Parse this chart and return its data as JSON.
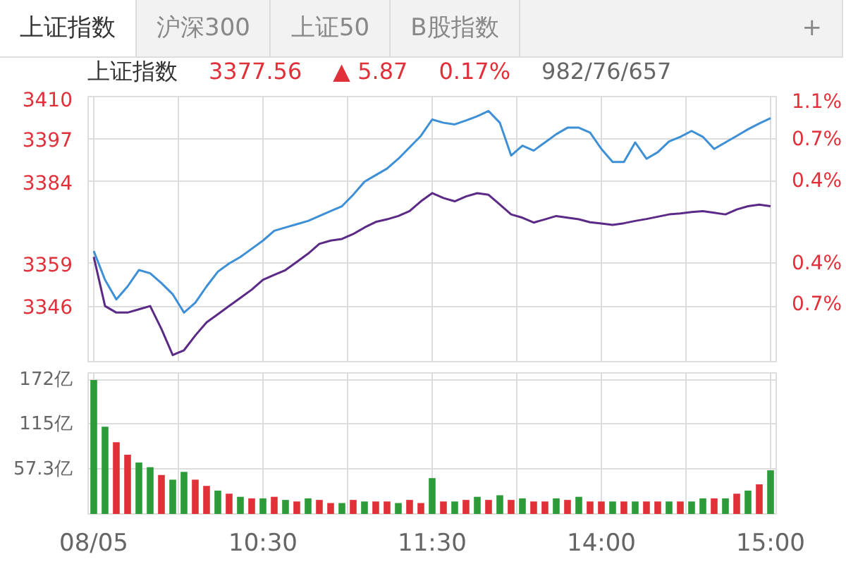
{
  "chart_data": [
    {
      "type": "line",
      "title": "上证指数",
      "annotations": [
        "上证指数",
        "沪深300",
        "上证50",
        "B股指数",
        "+",
        "3377.56",
        "▲ 5.87",
        "0.17%",
        "982/76/657"
      ],
      "categories": [
        null,
        null,
        null,
        null,
        null,
        null,
        null,
        null,
        null,
        null,
        null,
        null,
        null,
        null,
        null,
        null,
        null,
        null,
        null,
        null,
        null,
        null,
        null,
        null,
        null,
        null,
        null,
        null,
        null,
        null,
        null,
        null,
        null,
        null,
        null,
        null,
        null,
        null,
        null,
        null,
        null,
        null,
        null,
        null,
        null,
        null,
        null,
        null,
        null,
        null,
        null,
        null,
        null,
        null,
        null,
        null,
        null,
        null,
        null,
        null,
        null
      ],
      "ylim": [
        3329,
        3410
      ],
      "yticks": [
        3346,
        3359,
        3384,
        3397,
        3410
      ],
      "y2lim": [
        -1.27,
        1.14
      ],
      "y2ticks": [
        {
          "value": -0.75,
          "label": "0.7%"
        },
        {
          "value": -0.38,
          "label": "0.4%"
        },
        {
          "value": 0.37,
          "label": "0.4%"
        },
        {
          "value": 0.75,
          "label": "0.7%"
        },
        {
          "value": 1.14,
          "label": "1.1%"
        }
      ],
      "tick_labels": "y",
      "grid": true,
      "marker": "none",
      "line_style": "solid",
      "series": [
        {
          "color": "#3d8fd6",
          "values": [
            3362.8,
            3354,
            3348,
            3352,
            3357,
            3356,
            3353,
            3349.6,
            3344,
            3347,
            3352,
            3356.5,
            3359,
            3361,
            3363.5,
            3366,
            3369,
            3370,
            3371,
            3372,
            3373.5,
            3375,
            3376.5,
            3380,
            3384,
            3386,
            3388,
            3391,
            3394.5,
            3398,
            3403,
            3402,
            3401.5,
            3402.7,
            3404,
            3405.6,
            3402,
            3392,
            3395,
            3393.5,
            3396,
            3398.5,
            3400.5,
            3400.5,
            3399,
            3394,
            3390,
            3390,
            3396,
            3391,
            3393,
            3396.3,
            3397.7,
            3399.5,
            3397.7,
            3394,
            3396,
            3398,
            3400,
            3401.8,
            3403.4
          ]
        },
        {
          "color": "#5b2a86",
          "values": [
            3361,
            3346,
            3344,
            3344,
            3345,
            3346,
            3339,
            3331,
            3332.5,
            3337,
            3341,
            3343.5,
            3346,
            3348.5,
            3351,
            3354,
            3355.5,
            3357,
            3359.5,
            3362,
            3365,
            3366,
            3366.5,
            3368,
            3370,
            3371.7,
            3372.5,
            3373.5,
            3375,
            3378,
            3380.5,
            3379,
            3378,
            3379.5,
            3380.5,
            3380,
            3377,
            3374,
            3373,
            3371.5,
            3372.5,
            3373.5,
            3373,
            3372.5,
            3371.6,
            3371.2,
            3370.8,
            3371.3,
            3372,
            3372.6,
            3373.3,
            3374,
            3374.3,
            3374.7,
            3375,
            3374.5,
            3374,
            3375.5,
            3376.5,
            3377,
            3376.5
          ]
        }
      ]
    },
    {
      "type": "bar",
      "categories": [
        "08/05",
        null,
        null,
        null,
        null,
        null,
        null,
        null,
        null,
        null,
        null,
        null,
        null,
        null,
        null,
        "10:30",
        null,
        null,
        null,
        null,
        null,
        null,
        null,
        null,
        null,
        null,
        null,
        null,
        null,
        null,
        "11:30",
        null,
        null,
        null,
        null,
        null,
        null,
        null,
        null,
        null,
        null,
        null,
        null,
        null,
        null,
        "14:00",
        null,
        null,
        null,
        null,
        null,
        null,
        null,
        null,
        null,
        null,
        null,
        null,
        null,
        null,
        "15:00"
      ],
      "ylim": [
        0,
        181
      ],
      "yticks": [
        {
          "value": 57.3,
          "label": "57.3亿"
        },
        {
          "value": 115,
          "label": "115亿"
        },
        {
          "value": 172,
          "label": "172亿"
        }
      ],
      "grid": true,
      "values": [
        172,
        112,
        92,
        76,
        66,
        60,
        50,
        44,
        54,
        44,
        36,
        30,
        26,
        22,
        20,
        20,
        22,
        18,
        16,
        20,
        18,
        14,
        14,
        18,
        16,
        16,
        16,
        14,
        18,
        14,
        46,
        16,
        16,
        18,
        22,
        18,
        24,
        18,
        20,
        16,
        16,
        20,
        18,
        22,
        16,
        16,
        16,
        16,
        16,
        16,
        16,
        16,
        16,
        16,
        20,
        20,
        20,
        26,
        30,
        38,
        56
      ],
      "colors": [
        "#2e9a3a",
        "#2e9a3a",
        "#e0303a",
        "#e0303a",
        "#2e9a3a",
        "#2e9a3a",
        "#e0303a",
        "#2e9a3a",
        "#2e9a3a",
        "#e0303a",
        "#e0303a",
        "#2e9a3a",
        "#e0303a",
        "#2e9a3a",
        "#e0303a",
        "#2e9a3a",
        "#e0303a",
        "#2e9a3a",
        "#e0303a",
        "#2e9a3a",
        "#e0303a",
        "#e0303a",
        "#2e9a3a",
        "#e0303a",
        "#2e9a3a",
        "#e0303a",
        "#e0303a",
        "#2e9a3a",
        "#e0303a",
        "#e0303a",
        "#2e9a3a",
        "#e0303a",
        "#2e9a3a",
        "#e0303a",
        "#2e9a3a",
        "#e0303a",
        "#2e9a3a",
        "#e0303a",
        "#2e9a3a",
        "#e0303a",
        "#e0303a",
        "#2e9a3a",
        "#e0303a",
        "#2e9a3a",
        "#e0303a",
        "#e0303a",
        "#2e9a3a",
        "#e0303a",
        "#2e9a3a",
        "#e0303a",
        "#e0303a",
        "#2e9a3a",
        "#e0303a",
        "#2e9a3a",
        "#2e9a3a",
        "#e0303a",
        "#2e9a3a",
        "#e0303a",
        "#2e9a3a",
        "#e0303a",
        "#2e9a3a"
      ]
    }
  ]
}
